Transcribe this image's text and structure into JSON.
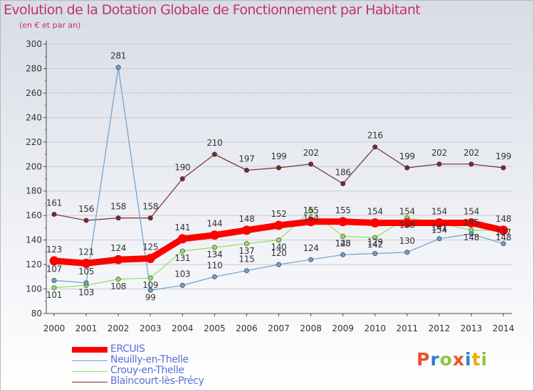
{
  "header": {
    "title": "Evolution de la Dotation Globale de Fonctionnement par Habitant",
    "subtitle": "(en € et par an)"
  },
  "logo": {
    "text": "Proxiti",
    "colors": [
      "#e8532a",
      "#2f7fc8",
      "#8dc63f",
      "#e8532a",
      "#2f7fc8",
      "#f2a900",
      "#8dc63f"
    ]
  },
  "colors": {
    "axis": "#4a4a4a",
    "grid": "#c9cbd3",
    "label": "#333333",
    "title": "#c0307a",
    "legend_text": "#5a6fd6"
  },
  "chart_data": {
    "type": "line",
    "title": "Evolution de la Dotation Globale de Fonctionnement par Habitant",
    "subtitle": "(en € et par an)",
    "xlabel": "",
    "ylabel": "",
    "categories": [
      "2000",
      "2001",
      "2002",
      "2003",
      "2004",
      "2005",
      "2006",
      "2007",
      "2008",
      "2009",
      "2010",
      "2011",
      "2012",
      "2013",
      "2014"
    ],
    "ylim": [
      80,
      300
    ],
    "yticks": [
      80,
      100,
      120,
      140,
      160,
      180,
      200,
      220,
      240,
      260,
      280,
      300
    ],
    "grid": "horizontal",
    "legend_position": "bottom-left",
    "series": [
      {
        "name": "ERCUIS",
        "color": "#ff0000",
        "values": [
          123,
          121,
          124,
          125,
          141,
          144,
          148,
          152,
          155,
          155,
          154,
          154,
          154,
          154,
          148
        ]
      },
      {
        "name": "Neuilly-en-Thelle",
        "color": "#6a9fcf",
        "values": [
          107,
          105,
          281,
          99,
          103,
          110,
          115,
          120,
          124,
          128,
          129,
          130,
          141,
          145,
          137
        ]
      },
      {
        "name": "Crouy-en-Thelle",
        "color": "#8fe05a",
        "values": [
          101,
          103,
          108,
          109,
          131,
          134,
          137,
          140,
          164,
          143,
          142,
          158,
          154,
          148,
          148
        ]
      },
      {
        "name": "Blaincourt-lès-Précy",
        "color": "#7a2a2a",
        "values": [
          161,
          156,
          158,
          158,
          190,
          210,
          197,
          199,
          202,
          186,
          216,
          199,
          202,
          202,
          199
        ]
      }
    ]
  }
}
